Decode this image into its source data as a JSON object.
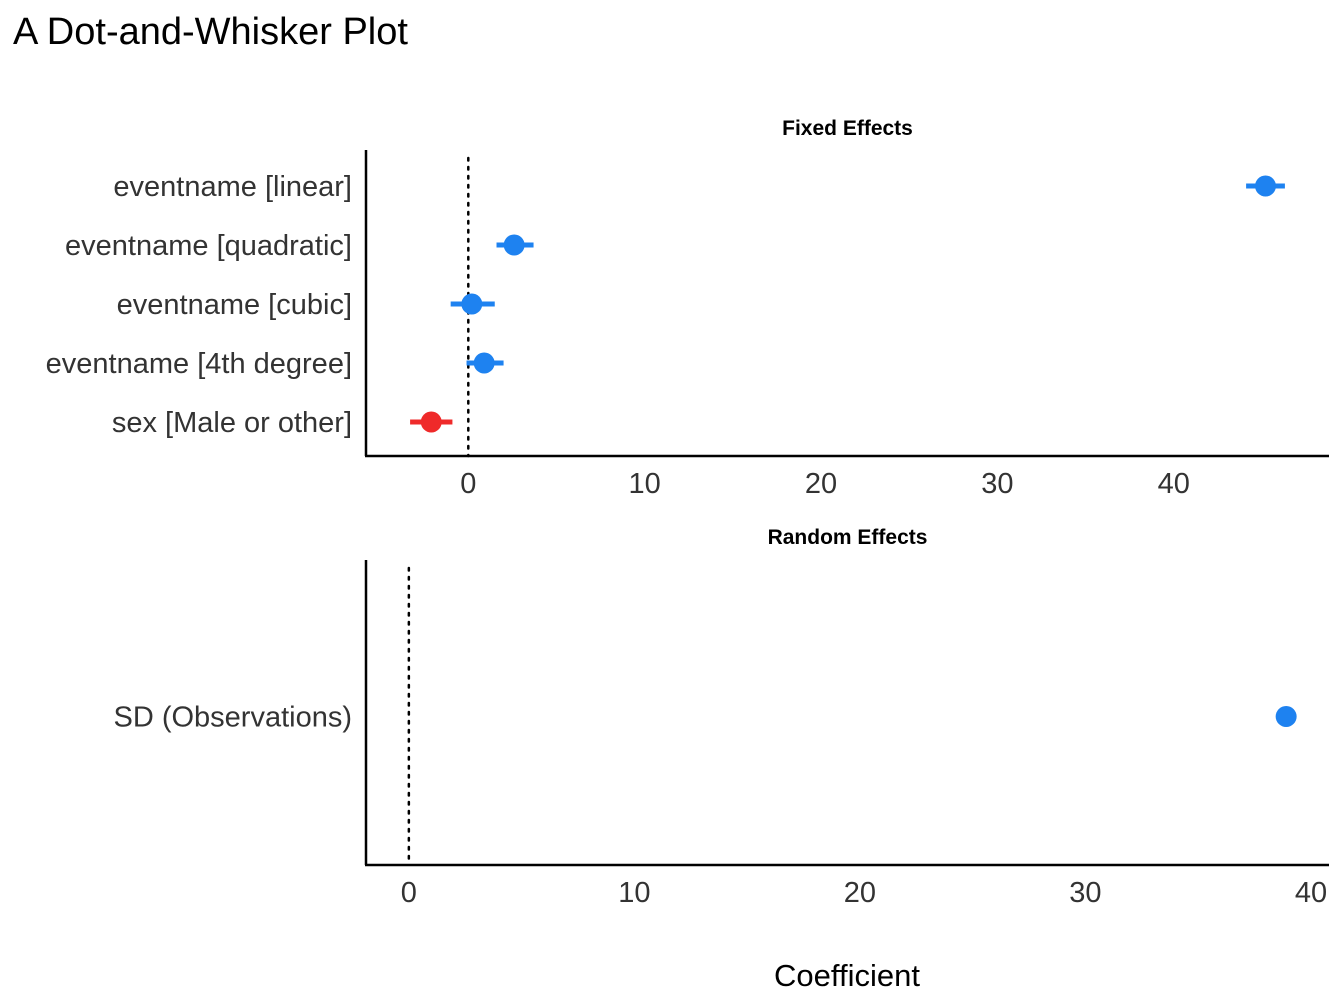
{
  "chart_data": {
    "type": "dot-and-whisker",
    "title": "A Dot-and-Whisker Plot",
    "xlabel": "Coefficient",
    "colors": {
      "positive": "#1e82f0",
      "negative": "#ef2a2a",
      "axis": "#000000",
      "text": "#333333"
    },
    "panels": [
      {
        "name": "Fixed Effects",
        "xlim": [
          -5.8,
          48.8
        ],
        "ticks": [
          0,
          10,
          20,
          30,
          40
        ],
        "tick_labels": [
          "0",
          "10",
          "20",
          "30",
          "40"
        ],
        "reference_line": 0,
        "terms": [
          {
            "label": "eventname [linear]",
            "estimate": 45.2,
            "ci_low": 44.1,
            "ci_high": 46.3,
            "sign": "positive"
          },
          {
            "label": "eventname [quadratic]",
            "estimate": 2.6,
            "ci_low": 1.6,
            "ci_high": 3.7,
            "sign": "positive"
          },
          {
            "label": "eventname [cubic]",
            "estimate": 0.2,
            "ci_low": -1.0,
            "ci_high": 1.5,
            "sign": "positive"
          },
          {
            "label": "eventname [4th degree]",
            "estimate": 0.9,
            "ci_low": -0.1,
            "ci_high": 2.0,
            "sign": "positive"
          },
          {
            "label": "sex [Male or other]",
            "estimate": -2.1,
            "ci_low": -3.3,
            "ci_high": -0.9,
            "sign": "negative"
          }
        ]
      },
      {
        "name": "Random Effects",
        "xlim": [
          -1.9,
          40.8
        ],
        "ticks": [
          0,
          10,
          20,
          30,
          40
        ],
        "tick_labels": [
          "0",
          "10",
          "20",
          "30",
          "40"
        ],
        "reference_line": 0,
        "terms": [
          {
            "label": "SD (Observations)",
            "estimate": 38.9,
            "ci_low": 38.9,
            "ci_high": 38.9,
            "sign": "positive"
          }
        ]
      }
    ]
  }
}
